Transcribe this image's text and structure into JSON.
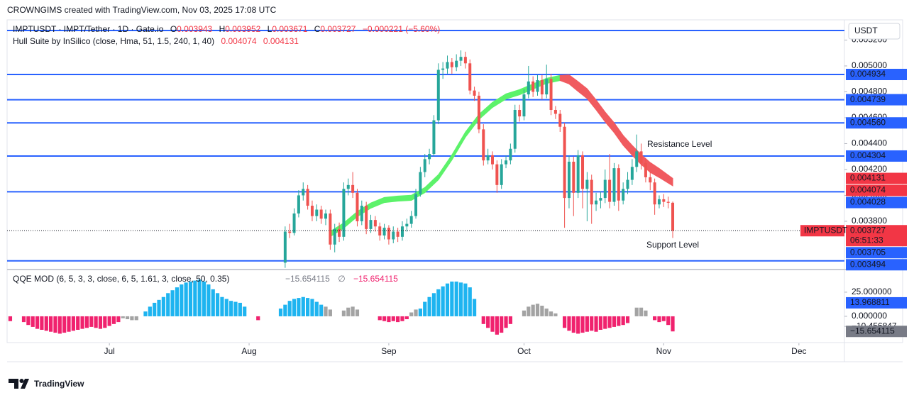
{
  "header": {
    "credit": "CROWNGIMS created with TradingView.com, Nov 03, 2025 17:08 UTC",
    "logo": "TradingView"
  },
  "chart_data": {
    "type": "candlestick",
    "symbol": "IMPTUSDT · IMPT/Tether · 1D · Gate.io",
    "ohlc_keys": [
      "O",
      "H",
      "L",
      "C"
    ],
    "ohlc": [
      0.003943,
      0.003952,
      0.003671,
      0.003727
    ],
    "change": "−0.000221 (−5.60%)",
    "currency": "USDT",
    "up_color": "#26a69a",
    "down_color": "#ef5350",
    "candles": [
      [
        0.00348,
        0.00376,
        0.00344,
        0.00372
      ],
      [
        0.00372,
        0.00378,
        0.00367,
        0.00371
      ],
      [
        0.00371,
        0.0039,
        0.00369,
        0.00386
      ],
      [
        0.00386,
        0.00404,
        0.00383,
        0.004
      ],
      [
        0.004,
        0.0041,
        0.00396,
        0.00405
      ],
      [
        0.00405,
        0.00408,
        0.00389,
        0.00392
      ],
      [
        0.00392,
        0.00396,
        0.0038,
        0.00384
      ],
      [
        0.00384,
        0.00393,
        0.0038,
        0.00389
      ],
      [
        0.00389,
        0.00392,
        0.00378,
        0.00382
      ],
      [
        0.00382,
        0.00389,
        0.00377,
        0.00386
      ],
      [
        0.00386,
        0.00389,
        0.00358,
        0.00362
      ],
      [
        0.00362,
        0.00378,
        0.00356,
        0.00374
      ],
      [
        0.00374,
        0.00379,
        0.00364,
        0.00368
      ],
      [
        0.00368,
        0.0041,
        0.00365,
        0.00405
      ],
      [
        0.00405,
        0.00413,
        0.004,
        0.00408
      ],
      [
        0.00408,
        0.00418,
        0.00398,
        0.00402
      ],
      [
        0.00402,
        0.00405,
        0.00376,
        0.0038
      ],
      [
        0.0038,
        0.00396,
        0.00377,
        0.00392
      ],
      [
        0.00392,
        0.00395,
        0.0037,
        0.00374
      ],
      [
        0.00374,
        0.00385,
        0.00371,
        0.00381
      ],
      [
        0.00381,
        0.00384,
        0.00372,
        0.00376
      ],
      [
        0.00376,
        0.00379,
        0.00365,
        0.00369
      ],
      [
        0.00369,
        0.00378,
        0.00366,
        0.00375
      ],
      [
        0.00375,
        0.00377,
        0.00362,
        0.00366
      ],
      [
        0.00366,
        0.00376,
        0.00363,
        0.00372
      ],
      [
        0.00372,
        0.00375,
        0.00364,
        0.00368
      ],
      [
        0.00368,
        0.0038,
        0.00365,
        0.00376
      ],
      [
        0.00376,
        0.00382,
        0.00372,
        0.00378
      ],
      [
        0.00378,
        0.00388,
        0.00375,
        0.00384
      ],
      [
        0.00384,
        0.00405,
        0.00382,
        0.00401
      ],
      [
        0.00401,
        0.00422,
        0.00399,
        0.00418
      ],
      [
        0.00418,
        0.00432,
        0.00414,
        0.00428
      ],
      [
        0.00428,
        0.00436,
        0.00424,
        0.00432
      ],
      [
        0.00432,
        0.00462,
        0.0043,
        0.00458
      ],
      [
        0.00458,
        0.00502,
        0.00455,
        0.00497
      ],
      [
        0.00497,
        0.00503,
        0.0049,
        0.00498
      ],
      [
        0.00498,
        0.00508,
        0.00494,
        0.00503
      ],
      [
        0.00503,
        0.00506,
        0.00494,
        0.00499
      ],
      [
        0.00499,
        0.00509,
        0.00496,
        0.00504
      ],
      [
        0.00504,
        0.00512,
        0.005,
        0.00507
      ],
      [
        0.00507,
        0.00511,
        0.00498,
        0.00502
      ],
      [
        0.00502,
        0.00505,
        0.00478,
        0.00481
      ],
      [
        0.00481,
        0.00484,
        0.00473,
        0.00477
      ],
      [
        0.00477,
        0.0048,
        0.00448,
        0.00451
      ],
      [
        0.00451,
        0.00455,
        0.00423,
        0.00427
      ],
      [
        0.00427,
        0.00436,
        0.00424,
        0.00431
      ],
      [
        0.00431,
        0.00434,
        0.0042,
        0.00424
      ],
      [
        0.00424,
        0.00427,
        0.00402,
        0.00408
      ],
      [
        0.00408,
        0.00428,
        0.00405,
        0.00424
      ],
      [
        0.00424,
        0.00431,
        0.00421,
        0.00427
      ],
      [
        0.00427,
        0.0044,
        0.00424,
        0.00436
      ],
      [
        0.00436,
        0.0047,
        0.00433,
        0.00466
      ],
      [
        0.00466,
        0.0047,
        0.00457,
        0.00461
      ],
      [
        0.00461,
        0.00482,
        0.00458,
        0.00478
      ],
      [
        0.00478,
        0.005,
        0.00475,
        0.00488
      ],
      [
        0.00488,
        0.00492,
        0.00476,
        0.0048
      ],
      [
        0.0048,
        0.00493,
        0.00477,
        0.00489
      ],
      [
        0.00489,
        0.00493,
        0.00474,
        0.00478
      ],
      [
        0.00478,
        0.00501,
        0.00475,
        0.0049
      ],
      [
        0.0049,
        0.00494,
        0.00462,
        0.00466
      ],
      [
        0.00466,
        0.00469,
        0.00459,
        0.00463
      ],
      [
        0.00463,
        0.00466,
        0.00449,
        0.00453
      ],
      [
        0.00453,
        0.00456,
        0.00375,
        0.00398
      ],
      [
        0.00398,
        0.00431,
        0.0039,
        0.00426
      ],
      [
        0.00426,
        0.0043,
        0.00384,
        0.00402
      ],
      [
        0.00402,
        0.00435,
        0.00398,
        0.00431
      ],
      [
        0.00431,
        0.00434,
        0.0039,
        0.00405
      ],
      [
        0.00405,
        0.00418,
        0.0038,
        0.00412
      ],
      [
        0.00412,
        0.00416,
        0.00378,
        0.00393
      ],
      [
        0.00393,
        0.00402,
        0.00388,
        0.00396
      ],
      [
        0.00396,
        0.00403,
        0.0039,
        0.00398
      ],
      [
        0.00398,
        0.0042,
        0.00394,
        0.00412
      ],
      [
        0.00412,
        0.00432,
        0.0039,
        0.00395
      ],
      [
        0.00395,
        0.00425,
        0.00392,
        0.00421
      ],
      [
        0.00421,
        0.00424,
        0.00388,
        0.00396
      ],
      [
        0.00396,
        0.0041,
        0.00393,
        0.00405
      ],
      [
        0.00405,
        0.00418,
        0.00401,
        0.00412
      ],
      [
        0.00412,
        0.00428,
        0.00408,
        0.00422
      ],
      [
        0.00422,
        0.00447,
        0.00418,
        0.00434
      ],
      [
        0.00434,
        0.0044,
        0.0042,
        0.00425
      ],
      [
        0.00425,
        0.00429,
        0.0041,
        0.00414
      ],
      [
        0.00414,
        0.00418,
        0.00404,
        0.0041
      ],
      [
        0.0041,
        0.00413,
        0.00385,
        0.00393
      ],
      [
        0.00393,
        0.004,
        0.0039,
        0.00397
      ],
      [
        0.00397,
        0.00401,
        0.00391,
        0.00395
      ],
      [
        0.00395,
        0.00399,
        0.0039,
        0.003943
      ],
      [
        0.003943,
        0.003952,
        0.003671,
        0.003727
      ]
    ],
    "xlim": [
      -61.7,
      124.1
    ],
    "xticks": [
      {
        "value": -39,
        "label": "Jul"
      },
      {
        "value": -8,
        "label": "Aug"
      },
      {
        "value": 23,
        "label": "Sep"
      },
      {
        "value": 53,
        "label": "Oct"
      },
      {
        "value": 84,
        "label": "Nov"
      },
      {
        "value": 114,
        "label": "Dec"
      }
    ],
    "ylim": [
      0.003438,
      0.005345
    ],
    "yticks": [
      {
        "value": 0.0038,
        "label": "0.003800"
      },
      {
        "value": 0.004,
        "label": "0.004000"
      },
      {
        "value": 0.0042,
        "label": "0.004200"
      },
      {
        "value": 0.0044,
        "label": "0.004400"
      },
      {
        "value": 0.0046,
        "label": "0.004600"
      },
      {
        "value": 0.0048,
        "label": "0.004800"
      },
      {
        "value": 0.005,
        "label": "0.005000"
      },
      {
        "value": 0.0052,
        "label": "0.005200"
      }
    ],
    "level_color": "#2962ff",
    "levels": [
      0.004934,
      0.004739,
      {
        "value": 0.00456,
        "label": "0.004560"
      },
      0.004304,
      0.004028,
      0.003494
    ],
    "unlabeled_levels": [
      0.005274
    ],
    "last_price": {
      "name": "IMPTUSDT",
      "value": 0.003727,
      "countdown": "06:51:33",
      "color": "#f23645"
    },
    "extra_price": 0.003705,
    "hull": {
      "name": "Hull Suite by InSilico (close, Hma, 51, 1.5, 240, 1, 40)",
      "values": [
        0.004074,
        0.004131
      ],
      "color": "#f23645",
      "series": [
        {
          "color": "#5cf26a",
          "x": [
            10,
            13,
            16,
            19,
            22,
            25,
            28,
            31,
            34,
            37,
            40,
            43,
            46,
            49,
            52,
            55,
            58,
            61
          ],
          "upper": [
            0.003721,
            0.003787,
            0.003875,
            0.003941,
            0.003984,
            0.003995,
            0.004001,
            0.004061,
            0.00416,
            0.004313,
            0.004489,
            0.004626,
            0.004719,
            0.004784,
            0.004817,
            0.004861,
            0.004905,
            0.004927
          ],
          "lower": [
            0.003681,
            0.003747,
            0.003835,
            0.003901,
            0.003944,
            0.003955,
            0.003961,
            0.004021,
            0.00412,
            0.004273,
            0.004449,
            0.004586,
            0.004679,
            0.004744,
            0.004777,
            0.004821,
            0.004865,
            0.004887
          ]
        },
        {
          "color": "#f05a5f",
          "x": [
            61,
            63,
            65,
            67,
            69,
            71,
            73,
            75,
            77,
            79,
            81,
            83,
            86
          ],
          "upper": [
            0.004927,
            0.004931,
            0.004879,
            0.004824,
            0.004737,
            0.004644,
            0.004561,
            0.004463,
            0.004386,
            0.004315,
            0.004254,
            0.004208,
            0.004131
          ],
          "lower": [
            0.004887,
            0.004861,
            0.004803,
            0.004748,
            0.004661,
            0.004568,
            0.004485,
            0.004387,
            0.00431,
            0.004239,
            0.004178,
            0.004138,
            0.004074
          ]
        }
      ]
    },
    "annotations": [
      "Resistance Level",
      "Support Level"
    ],
    "annotation_color": "#f23645",
    "qqe": {
      "title": "QQE MOD (6, 5, 3, 3, close, 6, 5, 1.61, 3, close, 50, 0.35)",
      "legend_values": [
        "−15.654115",
        "∅",
        "−15.654115"
      ],
      "ylim": [
        -26.5,
        47
      ],
      "yticks": [
        {
          "value": 25,
          "label": "25.000000"
        },
        {
          "value": 0,
          "label": "0.000000"
        },
        {
          "value": -10.456847,
          "label": "−10.456847"
        }
      ],
      "boxes": [
        {
          "value": 13.968811,
          "color": "#2962ff"
        },
        {
          "value": -15.654115,
          "label": "−15.654115",
          "color": "#787b86"
        }
      ],
      "series": [
        {
          "color": "#f0226e",
          "x": [
            -61,
            -58,
            -57,
            -56,
            -55,
            -54,
            -53,
            -52,
            -51,
            -50,
            -49,
            -48,
            -47,
            -46,
            -45,
            -44,
            -43,
            -42,
            -41,
            -40,
            -39,
            -38,
            -37,
            -6,
            21,
            22,
            23,
            24,
            25,
            26,
            27,
            44,
            45,
            46,
            47,
            48,
            49,
            50,
            62,
            63,
            64,
            65,
            66,
            67,
            68,
            69,
            70,
            71,
            72,
            73,
            74,
            75,
            76,
            82,
            83,
            84,
            85,
            86
          ],
          "values": [
            -5,
            -6,
            -9,
            -11,
            -13,
            -14,
            -15,
            -16,
            -17,
            -18,
            -17,
            -16,
            -15,
            -14,
            -13,
            -12,
            -11,
            -12,
            -13,
            -12,
            -10,
            -8,
            -6,
            -4,
            -4,
            -5,
            -6,
            -5,
            -6,
            -5,
            -3,
            -8,
            -12,
            -16,
            -19,
            -17,
            -12,
            -8,
            -12,
            -15,
            -17,
            -18,
            -17,
            -16,
            -15,
            -16,
            -14,
            -13,
            -12,
            -11,
            -10,
            -9,
            -7,
            -4,
            -6,
            -5,
            -9,
            -15.654115
          ]
        },
        {
          "color": "#a3a3a3",
          "x": [
            -36,
            -35,
            -34,
            -33,
            9,
            10,
            13,
            14,
            15,
            16,
            28,
            29,
            53,
            54,
            55,
            56,
            57,
            58,
            59,
            60,
            78,
            79,
            80
          ],
          "values": [
            -2,
            -3,
            -4,
            -4,
            10,
            7,
            6,
            9,
            10,
            7,
            4,
            7,
            6,
            10,
            12,
            13,
            11,
            8,
            5,
            3,
            9,
            9,
            6
          ]
        },
        {
          "color": "#1eb4f0",
          "x": [
            -31,
            -30,
            -29,
            -28,
            -27,
            -26,
            -25,
            -24,
            -23,
            -22,
            -21,
            -20,
            -19,
            -18,
            -17,
            -16,
            -15,
            -14,
            -13,
            -12,
            -11,
            -10,
            -9,
            -1,
            0,
            1,
            2,
            3,
            4,
            5,
            6,
            7,
            8,
            30,
            31,
            32,
            33,
            34,
            35,
            36,
            37,
            38,
            39,
            40,
            41,
            42
          ],
          "values": [
            5,
            10,
            14,
            17,
            20,
            24,
            27,
            30,
            33,
            35,
            36,
            37,
            38,
            36,
            33,
            28,
            24,
            20,
            18,
            16,
            15,
            14,
            10,
            8,
            12,
            16,
            18,
            19,
            20,
            19,
            18,
            15,
            12,
            8,
            15,
            20,
            24,
            28,
            31,
            34,
            36,
            36,
            35,
            34,
            30,
            18
          ]
        }
      ]
    }
  }
}
